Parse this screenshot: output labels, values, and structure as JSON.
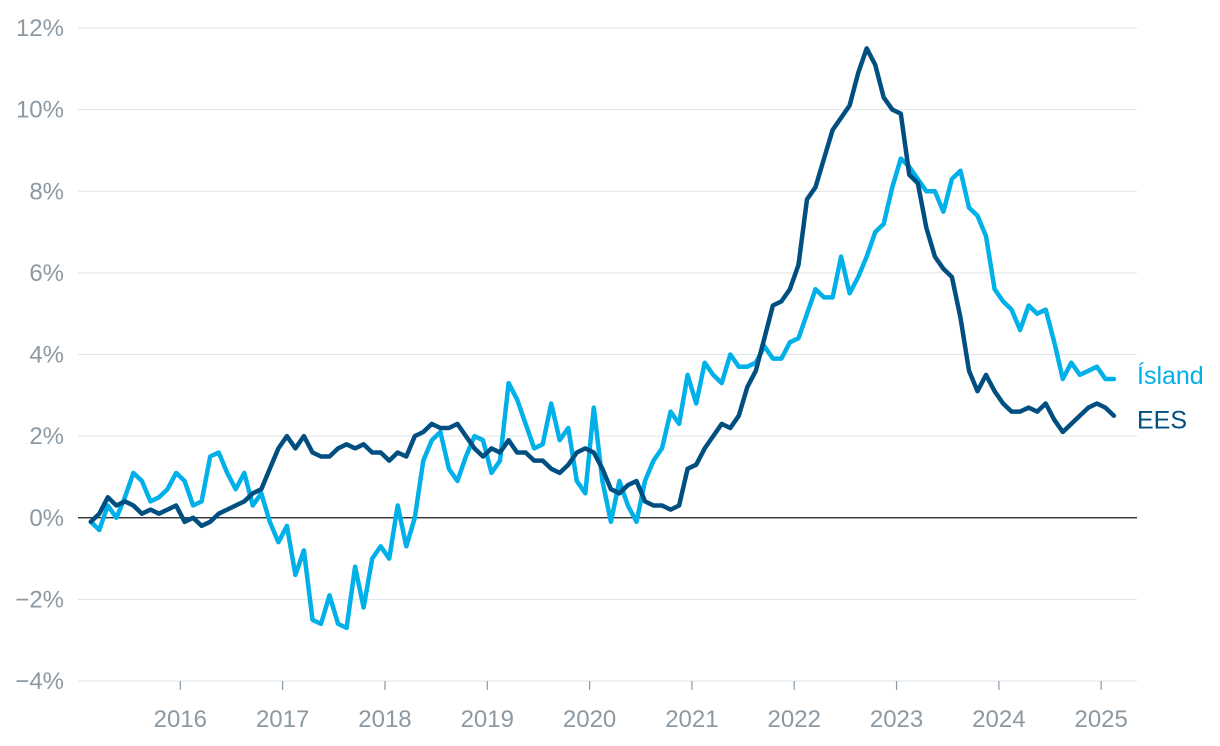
{
  "chart_data": {
    "type": "line",
    "title": "",
    "xlabel": "",
    "ylabel": "",
    "xlim": [
      2015.0,
      2025.35
    ],
    "ylim": [
      -4,
      12
    ],
    "grid": true,
    "y_ticks": [
      -4,
      -2,
      0,
      2,
      4,
      6,
      8,
      10,
      12
    ],
    "y_tick_labels": [
      "−4%",
      "−2%",
      "0%",
      "2%",
      "4%",
      "6%",
      "8%",
      "10%",
      "12%"
    ],
    "x_ticks": [
      2016,
      2017,
      2018,
      2019,
      2020,
      2021,
      2022,
      2023,
      2024,
      2025
    ],
    "x_tick_labels": [
      "2016",
      "2017",
      "2018",
      "2019",
      "2020",
      "2021",
      "2022",
      "2023",
      "2024",
      "2025"
    ],
    "legend": "end-of-line labels",
    "series": [
      {
        "name": "Ísland",
        "color": "#00b0e8",
        "x_start": 2015.125,
        "x_step": 0.08333,
        "values": [
          -0.1,
          -0.3,
          0.3,
          0.0,
          0.5,
          1.1,
          0.9,
          0.4,
          0.5,
          0.7,
          1.1,
          0.9,
          0.3,
          0.4,
          1.5,
          1.6,
          1.1,
          0.7,
          1.1,
          0.3,
          0.6,
          -0.1,
          -0.6,
          -0.2,
          -1.4,
          -0.8,
          -2.5,
          -2.6,
          -1.9,
          -2.6,
          -2.7,
          -1.2,
          -2.2,
          -1.0,
          -0.7,
          -1.0,
          0.3,
          -0.7,
          0.0,
          1.4,
          1.9,
          2.1,
          1.2,
          0.9,
          1.5,
          2.0,
          1.9,
          1.1,
          1.4,
          3.3,
          2.9,
          2.3,
          1.7,
          1.8,
          2.8,
          1.9,
          2.2,
          0.9,
          0.6,
          2.7,
          0.9,
          -0.1,
          0.9,
          0.3,
          -0.1,
          0.9,
          1.4,
          1.7,
          2.6,
          2.3,
          3.5,
          2.8,
          3.8,
          3.5,
          3.3,
          4.0,
          3.7,
          3.7,
          3.8,
          4.2,
          3.9,
          3.9,
          4.3,
          4.4,
          5.0,
          5.6,
          5.4,
          5.4,
          6.4,
          5.5,
          5.9,
          6.4,
          7.0,
          7.2,
          8.1,
          8.8,
          8.6,
          8.3,
          8.0,
          8.0,
          7.5,
          8.3,
          8.5,
          7.6,
          7.4,
          6.9,
          5.6,
          5.3,
          5.1,
          4.6,
          5.2,
          5.0,
          5.1,
          4.3,
          3.4,
          3.8,
          3.5,
          3.6,
          3.7,
          3.4,
          3.4
        ]
      },
      {
        "name": "EES",
        "color": "#004f80",
        "x_start": 2015.125,
        "x_step": 0.08333,
        "values": [
          -0.1,
          0.1,
          0.5,
          0.3,
          0.4,
          0.3,
          0.1,
          0.2,
          0.1,
          0.2,
          0.3,
          -0.1,
          0.0,
          -0.2,
          -0.1,
          0.1,
          0.2,
          0.3,
          0.4,
          0.6,
          0.7,
          1.2,
          1.7,
          2.0,
          1.7,
          2.0,
          1.6,
          1.5,
          1.5,
          1.7,
          1.8,
          1.7,
          1.8,
          1.6,
          1.6,
          1.4,
          1.6,
          1.5,
          2.0,
          2.1,
          2.3,
          2.2,
          2.2,
          2.3,
          2.0,
          1.7,
          1.5,
          1.7,
          1.6,
          1.9,
          1.6,
          1.6,
          1.4,
          1.4,
          1.2,
          1.1,
          1.3,
          1.6,
          1.7,
          1.6,
          1.2,
          0.7,
          0.6,
          0.8,
          0.9,
          0.4,
          0.3,
          0.3,
          0.2,
          0.3,
          1.2,
          1.3,
          1.7,
          2.0,
          2.3,
          2.2,
          2.5,
          3.2,
          3.6,
          4.4,
          5.2,
          5.3,
          5.6,
          6.2,
          7.8,
          8.1,
          8.8,
          9.5,
          9.8,
          10.1,
          10.9,
          11.5,
          11.1,
          10.3,
          10.0,
          9.9,
          8.4,
          8.2,
          7.1,
          6.4,
          6.1,
          5.9,
          4.9,
          3.6,
          3.1,
          3.5,
          3.1,
          2.8,
          2.6,
          2.6,
          2.7,
          2.6,
          2.8,
          2.4,
          2.1,
          2.3,
          2.5,
          2.7,
          2.8,
          2.7,
          2.5
        ]
      }
    ]
  }
}
